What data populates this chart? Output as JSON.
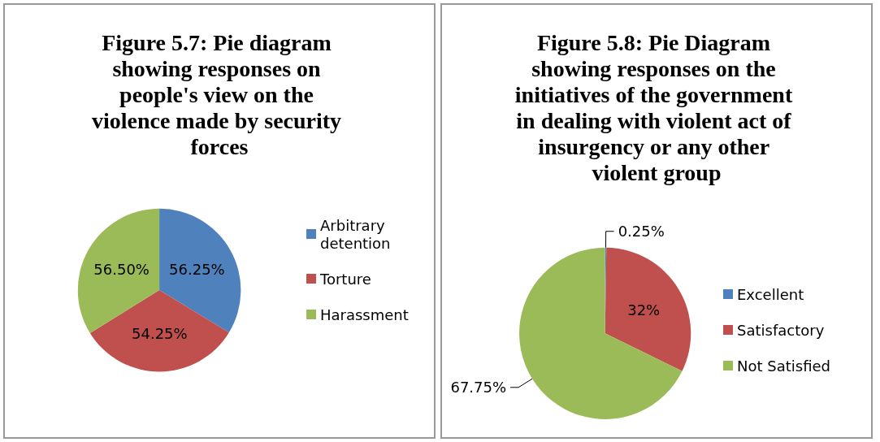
{
  "chart_data": [
    {
      "type": "pie",
      "title": "Figure 5.7: Pie diagram showing responses on people's view on the violence made by security forces",
      "categories": [
        "Arbitrary detention",
        "Torture",
        "Harassment"
      ],
      "values": [
        56.25,
        54.25,
        56.5
      ],
      "colors": [
        "#4f81bd",
        "#c0504d",
        "#9bbb59"
      ],
      "value_labels": [
        "56.25%",
        "54.25%",
        "56.50%"
      ],
      "legend": "right"
    },
    {
      "type": "pie",
      "title": "Figure 5.8: Pie Diagram showing responses on the initiatives of the government in dealing with violent act of insurgency or any other violent group",
      "categories": [
        "Excellent",
        "Satisfactory",
        "Not Satisfied"
      ],
      "values": [
        0.25,
        32,
        67.75
      ],
      "colors": [
        "#4f81bd",
        "#c0504d",
        "#9bbb59"
      ],
      "value_labels": [
        "0.25%",
        "32%",
        "67.75%"
      ],
      "legend": "right"
    }
  ]
}
